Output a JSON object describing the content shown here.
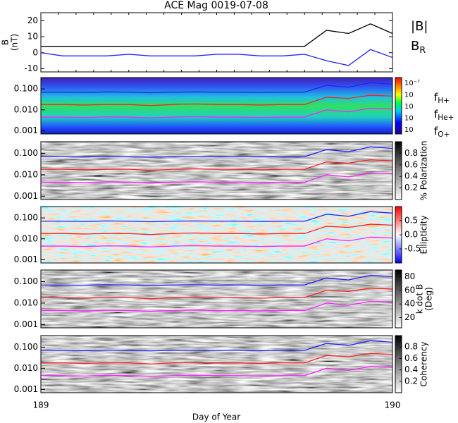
{
  "chart_data": [
    {
      "type": "line",
      "title": "ACE Mag 0019-07-08",
      "ylabel": [
        "B",
        "(nT)"
      ],
      "ylim": [
        -12,
        25
      ],
      "yticks": [
        -10,
        0,
        10,
        20
      ],
      "xlim": [
        189,
        190
      ],
      "xticks": [
        189,
        190
      ],
      "xlabel": "Day of Year",
      "x": [
        189,
        189.0625,
        189.125,
        189.1875,
        189.25,
        189.3125,
        189.375,
        189.4375,
        189.5,
        189.5625,
        189.625,
        189.6875,
        189.75,
        189.8125,
        189.875,
        189.9375,
        190
      ],
      "series": [
        {
          "name": "|B|",
          "color": "#000000",
          "values": [
            4,
            4,
            4,
            4,
            4,
            4,
            4,
            4,
            4,
            4,
            4,
            4,
            4,
            14,
            12,
            18,
            12
          ]
        },
        {
          "name": "B",
          "sub": "R",
          "color": "#2020ff",
          "values": [
            0,
            -2,
            -2,
            -2,
            -1,
            -2,
            -2,
            -2,
            -1,
            -1,
            -2,
            -2,
            -1,
            -5,
            -8,
            2,
            -3
          ]
        }
      ]
    },
    {
      "type": "spectrogram",
      "colormap": "rainbow",
      "log": true,
      "ylim": [
        0.0007,
        0.35
      ],
      "yticks": [
        0.001,
        {
          "value": 0.01,
          "label": "0.010"
        },
        {
          "value": 0.1,
          "label": "0.100"
        }
      ],
      "cbar_labels": [
        "10⁻⁷",
        "10",
        "10",
        "10",
        "10"
      ],
      "x": [
        189,
        189.0625,
        189.125,
        189.1875,
        189.25,
        189.3125,
        189.375,
        189.4375,
        189.5,
        189.5625,
        189.625,
        189.6875,
        189.75,
        189.8125,
        189.875,
        189.9375,
        190
      ],
      "series": [
        {
          "name": "f",
          "sub": "H+",
          "color": "#2020ff",
          "values": [
            0.07,
            0.07,
            0.068,
            0.072,
            0.07,
            0.066,
            0.07,
            0.072,
            0.07,
            0.07,
            0.068,
            0.07,
            0.07,
            0.15,
            0.12,
            0.2,
            0.17
          ]
        },
        {
          "name": "f",
          "sub": "He+",
          "color": "#ff2020",
          "values": [
            0.018,
            0.018,
            0.017,
            0.018,
            0.018,
            0.016,
            0.018,
            0.019,
            0.018,
            0.018,
            0.017,
            0.018,
            0.018,
            0.04,
            0.035,
            0.05,
            0.045
          ]
        },
        {
          "name": "f",
          "sub": "O+",
          "color": "#ff20ff",
          "values": [
            0.0045,
            0.0045,
            0.0043,
            0.0046,
            0.0045,
            0.0041,
            0.0045,
            0.0047,
            0.0045,
            0.0045,
            0.0043,
            0.0045,
            0.0045,
            0.01,
            0.008,
            0.012,
            0.011
          ]
        }
      ]
    },
    {
      "type": "spectrogram",
      "colormap": "gray",
      "log": true,
      "ylim": [
        0.0007,
        0.35
      ],
      "yticks": [
        0.001,
        {
          "value": 0.01,
          "label": "0.010"
        },
        {
          "value": 0.1,
          "label": "0.100"
        }
      ],
      "clim": [
        0,
        1
      ],
      "cticks": [
        0.2,
        0.4,
        0.6,
        0.8
      ],
      "clabel": [
        "% Polarization"
      ],
      "x": [
        189,
        189.0625,
        189.125,
        189.1875,
        189.25,
        189.3125,
        189.375,
        189.4375,
        189.5,
        189.5625,
        189.625,
        189.6875,
        189.75,
        189.8125,
        189.875,
        189.9375,
        190
      ],
      "series": [
        {
          "color": "#2020ff",
          "values": [
            0.07,
            0.07,
            0.068,
            0.072,
            0.07,
            0.066,
            0.07,
            0.072,
            0.07,
            0.07,
            0.068,
            0.07,
            0.07,
            0.15,
            0.12,
            0.2,
            0.17
          ]
        },
        {
          "color": "#ff2020",
          "values": [
            0.018,
            0.018,
            0.017,
            0.018,
            0.018,
            0.016,
            0.018,
            0.019,
            0.018,
            0.018,
            0.017,
            0.018,
            0.018,
            0.04,
            0.035,
            0.05,
            0.045
          ]
        },
        {
          "color": "#ff20ff",
          "values": [
            0.0045,
            0.0045,
            0.0043,
            0.0046,
            0.0045,
            0.0041,
            0.0045,
            0.0047,
            0.0045,
            0.0045,
            0.0043,
            0.0045,
            0.0045,
            0.01,
            0.008,
            0.012,
            0.011
          ]
        }
      ]
    },
    {
      "type": "spectrogram",
      "colormap": "bwr",
      "log": true,
      "ylim": [
        0.0007,
        0.35
      ],
      "yticks": [
        0.001,
        {
          "value": 0.01,
          "label": "0.010"
        },
        {
          "value": 0.1,
          "label": "0.100"
        }
      ],
      "clim": [
        -1,
        1
      ],
      "cticks": [
        -0.5,
        {
          "value": 0,
          "label": "0.0"
        },
        0.5
      ],
      "clabel": [
        "Ellipticity"
      ],
      "x": [
        189,
        189.0625,
        189.125,
        189.1875,
        189.25,
        189.3125,
        189.375,
        189.4375,
        189.5,
        189.5625,
        189.625,
        189.6875,
        189.75,
        189.8125,
        189.875,
        189.9375,
        190
      ],
      "series": [
        {
          "color": "#2020ff",
          "values": [
            0.07,
            0.07,
            0.068,
            0.072,
            0.07,
            0.066,
            0.07,
            0.072,
            0.07,
            0.07,
            0.068,
            0.07,
            0.07,
            0.15,
            0.12,
            0.2,
            0.17
          ]
        },
        {
          "color": "#ff2020",
          "values": [
            0.018,
            0.018,
            0.017,
            0.018,
            0.018,
            0.016,
            0.018,
            0.019,
            0.018,
            0.018,
            0.017,
            0.018,
            0.018,
            0.04,
            0.035,
            0.05,
            0.045
          ]
        },
        {
          "color": "#ff20ff",
          "values": [
            0.0045,
            0.0045,
            0.0043,
            0.0046,
            0.0045,
            0.0041,
            0.0045,
            0.0047,
            0.0045,
            0.0045,
            0.0043,
            0.0045,
            0.0045,
            0.01,
            0.008,
            0.012,
            0.011
          ]
        }
      ]
    },
    {
      "type": "spectrogram",
      "colormap": "gray",
      "log": true,
      "ylim": [
        0.0007,
        0.35
      ],
      "yticks": [
        0.001,
        {
          "value": 0.01,
          "label": "0.010"
        },
        {
          "value": 0.1,
          "label": "0.100"
        }
      ],
      "clim": [
        5,
        90
      ],
      "cticks": [
        20,
        40,
        60,
        80
      ],
      "clabel": [
        "k dot B",
        "(Deg)"
      ],
      "x": [
        189,
        189.0625,
        189.125,
        189.1875,
        189.25,
        189.3125,
        189.375,
        189.4375,
        189.5,
        189.5625,
        189.625,
        189.6875,
        189.75,
        189.8125,
        189.875,
        189.9375,
        190
      ],
      "series": [
        {
          "color": "#2020ff",
          "values": [
            0.07,
            0.07,
            0.068,
            0.072,
            0.07,
            0.066,
            0.07,
            0.072,
            0.07,
            0.07,
            0.068,
            0.07,
            0.07,
            0.15,
            0.12,
            0.2,
            0.17
          ]
        },
        {
          "color": "#ff2020",
          "values": [
            0.018,
            0.018,
            0.017,
            0.018,
            0.018,
            0.016,
            0.018,
            0.019,
            0.018,
            0.018,
            0.017,
            0.018,
            0.018,
            0.04,
            0.035,
            0.05,
            0.045
          ]
        },
        {
          "color": "#ff20ff",
          "values": [
            0.0045,
            0.0045,
            0.0043,
            0.0046,
            0.0045,
            0.0041,
            0.0045,
            0.0047,
            0.0045,
            0.0045,
            0.0043,
            0.0045,
            0.0045,
            0.01,
            0.008,
            0.012,
            0.011
          ]
        }
      ]
    },
    {
      "type": "spectrogram",
      "colormap": "gray",
      "log": true,
      "ylim": [
        0.0007,
        0.35
      ],
      "yticks": [
        0.001,
        {
          "value": 0.01,
          "label": "0.010"
        },
        {
          "value": 0.1,
          "label": "0.100"
        }
      ],
      "clim": [
        0,
        1
      ],
      "cticks": [
        0.2,
        0.4,
        0.6,
        0.8
      ],
      "clabel": [
        "Coherency"
      ],
      "x": [
        189,
        189.0625,
        189.125,
        189.1875,
        189.25,
        189.3125,
        189.375,
        189.4375,
        189.5,
        189.5625,
        189.625,
        189.6875,
        189.75,
        189.8125,
        189.875,
        189.9375,
        190
      ],
      "series": [
        {
          "color": "#2020ff",
          "values": [
            0.07,
            0.07,
            0.068,
            0.072,
            0.07,
            0.066,
            0.07,
            0.072,
            0.07,
            0.07,
            0.068,
            0.07,
            0.07,
            0.15,
            0.12,
            0.2,
            0.17
          ]
        },
        {
          "color": "#ff2020",
          "values": [
            0.018,
            0.018,
            0.017,
            0.018,
            0.018,
            0.016,
            0.018,
            0.019,
            0.018,
            0.018,
            0.017,
            0.018,
            0.018,
            0.04,
            0.035,
            0.05,
            0.045
          ]
        },
        {
          "color": "#ff20ff",
          "values": [
            0.0045,
            0.0045,
            0.0043,
            0.0046,
            0.0045,
            0.0041,
            0.0045,
            0.0047,
            0.0045,
            0.0045,
            0.0043,
            0.0045,
            0.0045,
            0.01,
            0.008,
            0.012,
            0.011
          ]
        }
      ]
    }
  ]
}
